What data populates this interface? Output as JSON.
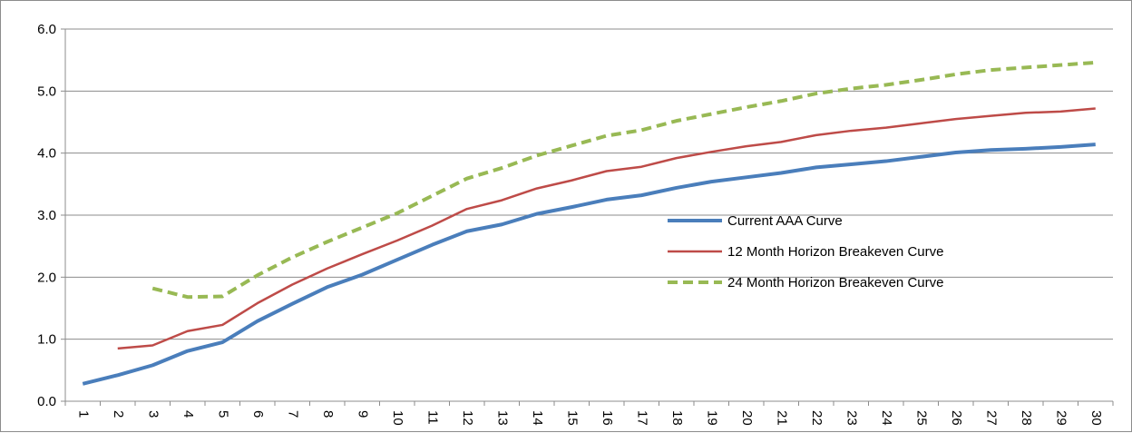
{
  "chart_data": {
    "type": "line",
    "title": "",
    "xlabel": "",
    "ylabel": "",
    "categories": [
      "1",
      "2",
      "3",
      "4",
      "5",
      "6",
      "7",
      "8",
      "9",
      "10",
      "11",
      "12",
      "13",
      "14",
      "15",
      "16",
      "17",
      "18",
      "19",
      "20",
      "21",
      "22",
      "23",
      "24",
      "25",
      "26",
      "27",
      "28",
      "29",
      "30"
    ],
    "ylim": [
      0,
      6
    ],
    "yticks": [
      "0.0",
      "1.0",
      "2.0",
      "3.0",
      "4.0",
      "5.0",
      "6.0"
    ],
    "grid": "horizontal",
    "legend_position": "right",
    "series": [
      {
        "name": "Current AAA Curve",
        "color": "#4a7ebb",
        "style": "solid-thick",
        "values": [
          0.28,
          0.42,
          0.58,
          0.81,
          0.95,
          1.29,
          1.57,
          1.84,
          2.04,
          2.28,
          2.52,
          2.74,
          2.85,
          3.02,
          3.13,
          3.25,
          3.32,
          3.44,
          3.54,
          3.61,
          3.68,
          3.77,
          3.82,
          3.87,
          3.94,
          4.01,
          4.05,
          4.07,
          4.1,
          4.14
        ]
      },
      {
        "name": "12 Month Horizon Breakeven Curve",
        "color": "#be4b48",
        "style": "solid-thin",
        "values": [
          null,
          0.85,
          0.9,
          1.13,
          1.23,
          1.58,
          1.88,
          2.14,
          2.37,
          2.59,
          2.83,
          3.1,
          3.24,
          3.43,
          3.56,
          3.71,
          3.78,
          3.92,
          4.02,
          4.11,
          4.18,
          4.29,
          4.36,
          4.41,
          4.48,
          4.55,
          4.6,
          4.65,
          4.67,
          4.72
        ]
      },
      {
        "name": "24 Month Horizon Breakeven Curve",
        "color": "#98b954",
        "style": "dashed",
        "values": [
          null,
          null,
          1.82,
          1.68,
          1.69,
          2.03,
          2.32,
          2.57,
          2.8,
          3.03,
          3.31,
          3.59,
          3.76,
          3.96,
          4.12,
          4.28,
          4.37,
          4.52,
          4.63,
          4.74,
          4.84,
          4.96,
          5.04,
          5.1,
          5.18,
          5.27,
          5.34,
          5.38,
          5.42,
          5.46
        ]
      }
    ]
  }
}
